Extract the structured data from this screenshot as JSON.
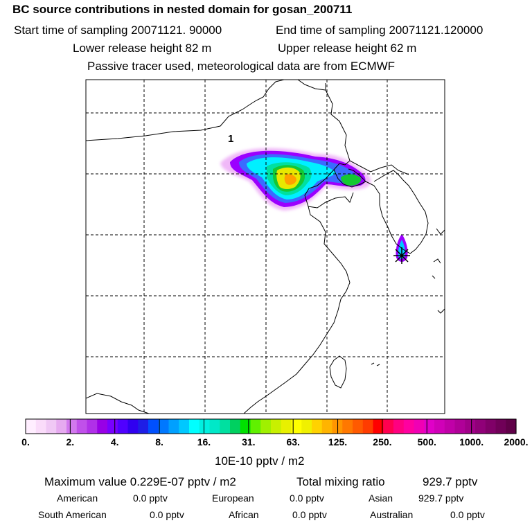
{
  "header": {
    "title": "BC  source contributions in nested domain for gosan_200711",
    "start_sampling": "Start time of sampling 20071121. 90000",
    "end_sampling": "End time of sampling 20071121.120000",
    "lower_release": "Lower release height   82 m",
    "upper_release": "Upper release height   62 m",
    "tracer_note": "Passive tracer used, meteorological data are from ECMWF"
  },
  "map": {
    "source_label": "1",
    "plume_colors": {
      "outer": "#f0b8f8",
      "purple": "#9b00ff",
      "blue": "#3a6bff",
      "cyan": "#00f0ff",
      "teal": "#00e0a0",
      "green": "#14c832",
      "yellow": "#e8e800",
      "orange": "#ffa000",
      "receptor": "#00c8ff"
    }
  },
  "colorbar": {
    "labels": [
      "0.",
      "2.",
      "4.",
      "8.",
      "16.",
      "31.",
      "63.",
      "125.",
      "250.",
      "500.",
      "1000.",
      "2000."
    ],
    "unit": "10E-10 pptv / m2",
    "colors": [
      "#ffeeff",
      "#fadcfa",
      "#f0c8f5",
      "#e6aaf0",
      "#d278ee",
      "#c050ea",
      "#b030e8",
      "#9800e6",
      "#7800ff",
      "#5000ff",
      "#3000f0",
      "#1e1ee6",
      "#0050ff",
      "#0078ff",
      "#00a0ff",
      "#00c8ff",
      "#00ffff",
      "#00f0e0",
      "#00e8c8",
      "#00e0a0",
      "#00d060",
      "#00e000",
      "#60f000",
      "#a0f000",
      "#c8f000",
      "#e8f000",
      "#ffff00",
      "#f0f000",
      "#ffd200",
      "#ffb400",
      "#ff9600",
      "#ff7800",
      "#ff5a00",
      "#ff3c00",
      "#ff0000",
      "#ff0050",
      "#ff0080",
      "#ff00a0",
      "#f000b4",
      "#e000c8",
      "#d000b8",
      "#c000a8",
      "#b00098",
      "#a00088",
      "#900078",
      "#800068",
      "#700058",
      "#600048"
    ]
  },
  "summary": {
    "max_label": "Maximum value  0.229E-07 pptv / m2",
    "total_label": "Total mixing ratio",
    "total_value": "929.7 pptv",
    "american_label": "American",
    "american_value": "0.0 pptv",
    "european_label": "European",
    "european_value": "0.0 pptv",
    "asian_label": "Asian",
    "asian_value": "929.7 pptv",
    "south_american_label": "South American",
    "south_american_value": "0.0 pptv",
    "african_label": "African",
    "african_value": "0.0 pptv",
    "australian_label": "Australian",
    "australian_value": "0.0 pptv"
  }
}
